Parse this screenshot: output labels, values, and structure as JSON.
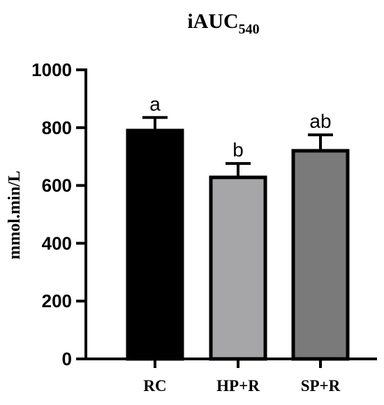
{
  "chart_data": {
    "type": "bar",
    "title": "iAUC",
    "title_subscript": "540",
    "xlabel": "",
    "ylabel": "mmol.min/L",
    "ylim": [
      0,
      1000
    ],
    "yticks": [
      0,
      200,
      400,
      600,
      800,
      1000
    ],
    "ytick_labels": [
      "0",
      "200",
      "400",
      "600",
      "800",
      "1000"
    ],
    "categories": [
      "RC",
      "HP+R",
      "SP+R"
    ],
    "values": [
      790,
      628,
      720
    ],
    "errors": [
      45,
      48,
      55
    ],
    "significance_labels": [
      "a",
      "b",
      "ab"
    ],
    "bar_colors": [
      "#000000",
      "#a6a6a8",
      "#7a7a7a"
    ],
    "outline_color": "#000000",
    "grid": false,
    "legend": "none"
  }
}
